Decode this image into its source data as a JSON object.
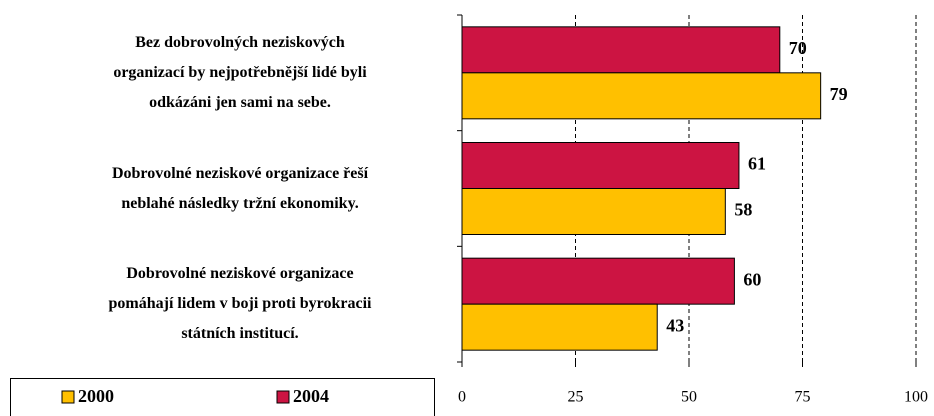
{
  "chart_data": {
    "type": "hbar",
    "categories": [
      "Bez dobrovolných neziskových\norganizací by nejpotřebnější lidé byli\nodkázáni jen sami na sebe.",
      "Dobrovolné neziskové organizace řeší\nneblahé následky tržní ekonomiky.",
      "Dobrovolné neziskové organizace\npomáhají lidem v boji proti byrokracii\nstátních institucí."
    ],
    "series": [
      {
        "name": "2000",
        "color": "#ffc000",
        "values": [
          79,
          58,
          43
        ]
      },
      {
        "name": "2004",
        "color": "#cc1442",
        "values": [
          70,
          61,
          60
        ]
      }
    ],
    "xlim": [
      0,
      100
    ],
    "xticks": [
      0,
      25,
      50,
      75,
      100
    ],
    "grid": true,
    "legend": "bottom-left"
  }
}
